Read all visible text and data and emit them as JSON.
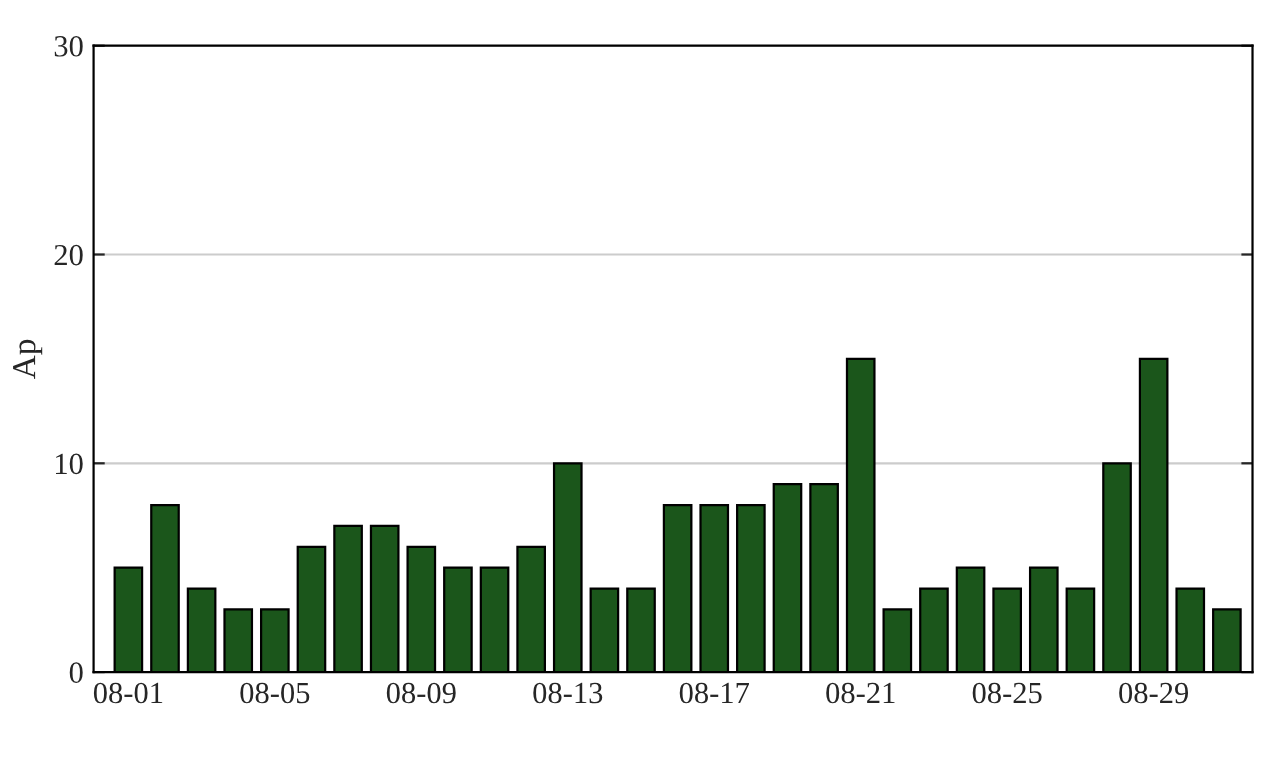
{
  "chart_data": {
    "type": "bar",
    "ylabel": "Ap",
    "categories": [
      "08-01",
      null,
      null,
      null,
      "08-05",
      null,
      null,
      null,
      "08-09",
      null,
      null,
      null,
      "08-13",
      null,
      null,
      null,
      "08-17",
      null,
      null,
      null,
      "08-21",
      null,
      null,
      null,
      "08-25",
      null,
      null,
      null,
      "08-29",
      null,
      null
    ],
    "values": [
      5,
      8,
      4,
      3,
      3,
      6,
      7,
      7,
      6,
      5,
      5,
      6,
      10,
      4,
      4,
      8,
      8,
      8,
      9,
      9,
      15,
      3,
      4,
      5,
      4,
      5,
      4,
      10,
      15,
      4,
      3
    ],
    "color": "#1b561b",
    "ylim": [
      0,
      30
    ],
    "yticks": [
      0,
      10,
      20,
      30
    ],
    "grid": "y",
    "legend": false
  }
}
